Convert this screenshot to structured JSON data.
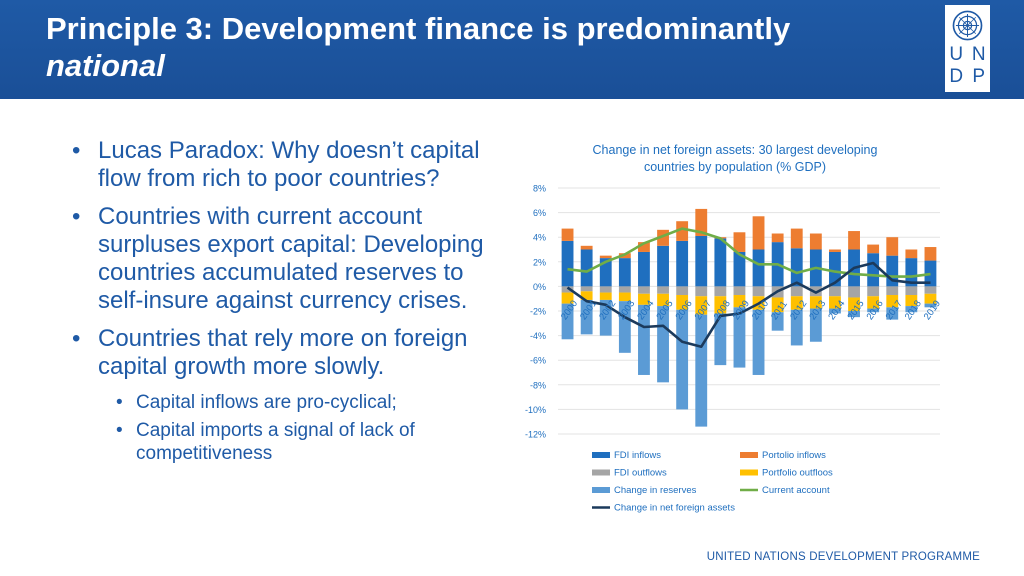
{
  "header": {
    "title_line1": "Principle 3: Development finance is predominantly",
    "title_line2": "national",
    "logo_letters": [
      "U",
      "N",
      "D",
      "P"
    ]
  },
  "bullets": [
    {
      "text": "Lucas Paradox: Why doesn’t capital flow from rich to poor countries?",
      "level": 1
    },
    {
      "text": "Countries with current account surpluses export capital: Developing countries accumulated reserves to self-insure against currency crises.",
      "level": 1
    },
    {
      "text": "Countries that rely more on foreign capital growth more slowly.",
      "level": 1
    },
    {
      "text": "Capital inflows are pro-cyclical;",
      "level": 2
    },
    {
      "text": "Capital imports a signal of lack of competitiveness",
      "level": 2
    }
  ],
  "footer": "UNITED NATIONS DEVELOPMENT PROGRAMME",
  "chart_data": {
    "type": "bar",
    "title": "Change in net foreign assets: 30 largest developing countries by population (% GDP)",
    "categories": [
      "2000",
      "2001",
      "2002",
      "2003",
      "2004",
      "2005",
      "2006",
      "2007",
      "2008",
      "2009",
      "2010",
      "2011",
      "2012",
      "2013",
      "2014",
      "2015",
      "2016",
      "2017",
      "2018",
      "2019"
    ],
    "ylim": [
      -12,
      8
    ],
    "yticks": [
      "8%",
      "6%",
      "4%",
      "2%",
      "0%",
      "-2%",
      "-4%",
      "-6%",
      "-8%",
      "-10%",
      "-12%"
    ],
    "stacking": "stacked",
    "legend_position": "bottom",
    "series": [
      {
        "name": "FDI inflows",
        "type": "bar",
        "color": "#1f6fbf",
        "values": [
          3.7,
          3.0,
          2.3,
          2.3,
          2.8,
          3.3,
          3.7,
          4.1,
          3.9,
          2.8,
          3.0,
          3.6,
          3.1,
          3.0,
          2.8,
          3.0,
          2.7,
          2.5,
          2.3,
          2.1
        ]
      },
      {
        "name": "Portolio inflows",
        "type": "bar",
        "color": "#ed7d31",
        "values": [
          1.0,
          0.3,
          0.2,
          0.4,
          0.8,
          1.3,
          1.6,
          2.2,
          0.1,
          1.6,
          2.7,
          0.7,
          1.6,
          1.3,
          0.2,
          1.5,
          0.7,
          1.5,
          0.7,
          1.1
        ]
      },
      {
        "name": "FDI outflows",
        "type": "bar",
        "color": "#a5a5a5",
        "values": [
          -0.5,
          -0.4,
          -0.5,
          -0.5,
          -0.6,
          -0.6,
          -0.7,
          -0.8,
          -0.8,
          -0.7,
          -0.8,
          -0.9,
          -0.8,
          -0.8,
          -0.8,
          -0.9,
          -0.8,
          -0.7,
          -0.7,
          -0.6
        ]
      },
      {
        "name": "Portfolio outfloos",
        "type": "bar",
        "color": "#ffc000",
        "values": [
          -0.9,
          -0.7,
          -0.6,
          -0.7,
          -0.9,
          -1.0,
          -1.2,
          -1.5,
          -1.4,
          -1.0,
          -1.1,
          -1.2,
          -1.1,
          -1.0,
          -1.0,
          -1.1,
          -1.0,
          -1.0,
          -0.9,
          -0.8
        ]
      },
      {
        "name": "Change in reserves",
        "type": "bar",
        "color": "#5b9bd5",
        "values": [
          -2.9,
          -2.8,
          -2.9,
          -4.2,
          -5.7,
          -6.2,
          -8.1,
          -9.1,
          -4.2,
          -4.9,
          -5.3,
          -1.5,
          -2.9,
          -2.7,
          -0.4,
          -0.5,
          -0.3,
          -1.0,
          -0.5,
          -0.3
        ]
      },
      {
        "name": "Current account",
        "type": "line",
        "color": "#70ad47",
        "values": [
          1.4,
          1.2,
          2.0,
          2.6,
          3.5,
          4.1,
          4.7,
          4.4,
          3.9,
          2.6,
          1.8,
          1.8,
          1.1,
          1.5,
          1.2,
          1.0,
          0.9,
          0.8,
          0.8,
          1.0
        ]
      },
      {
        "name": "Change in net foreign assets",
        "type": "line",
        "color": "#1b3a5c",
        "values": [
          -0.1,
          -1.2,
          -1.5,
          -2.5,
          -3.3,
          -3.2,
          -4.5,
          -4.9,
          -2.4,
          -2.2,
          -1.4,
          -0.4,
          0.3,
          -0.5,
          0.3,
          1.5,
          1.9,
          0.5,
          0.3,
          0.3
        ]
      }
    ]
  }
}
